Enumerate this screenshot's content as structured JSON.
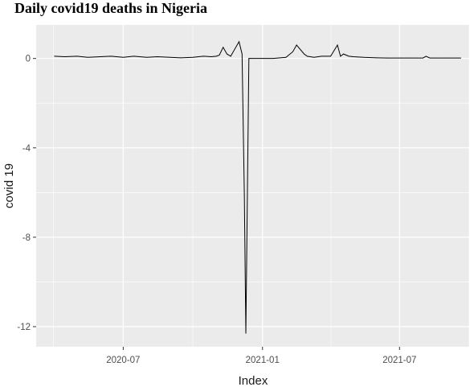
{
  "chart_data": {
    "type": "line",
    "title": "Daily covid19 deaths in Nigeria",
    "xlabel": "Index",
    "ylabel": "covid 19",
    "x_tick_labels": [
      "2020-07",
      "2021-01",
      "2021-07"
    ],
    "x_tick_dates": [
      "2020-07-01",
      "2021-01-01",
      "2021-07-01"
    ],
    "y_tick_labels": [
      "0",
      "-4",
      "-8",
      "-12"
    ],
    "y_ticks": [
      0,
      -4,
      -8,
      -12
    ],
    "xlim": [
      "2020-03-08",
      "2021-10-01"
    ],
    "ylim": [
      -12.9,
      1.5
    ],
    "grid": true,
    "background": "#ebebeb",
    "grid_color": "#ffffff",
    "line_color": "#000000",
    "series": [
      {
        "x": [
          "2020-04-01",
          "2020-04-15",
          "2020-05-01",
          "2020-05-15",
          "2020-06-01",
          "2020-06-15",
          "2020-07-01",
          "2020-07-15",
          "2020-08-01",
          "2020-08-15",
          "2020-09-01",
          "2020-09-15",
          "2020-10-01",
          "2020-10-15",
          "2020-10-25",
          "2020-11-01",
          "2020-11-05",
          "2020-11-10",
          "2020-11-15",
          "2020-11-20",
          "2020-11-25",
          "2020-12-01",
          "2020-12-05",
          "2020-12-08",
          "2020-12-10",
          "2020-12-12",
          "2020-12-14",
          "2020-12-15",
          "2020-12-16",
          "2020-12-18",
          "2020-12-20",
          "2021-01-01",
          "2021-01-15",
          "2021-02-01",
          "2021-02-10",
          "2021-02-15",
          "2021-02-20",
          "2021-02-25",
          "2021-03-01",
          "2021-03-10",
          "2021-03-20",
          "2021-04-01",
          "2021-04-10",
          "2021-04-14",
          "2021-04-18",
          "2021-04-25",
          "2021-05-01",
          "2021-05-15",
          "2021-06-01",
          "2021-06-15",
          "2021-07-01",
          "2021-07-15",
          "2021-08-01",
          "2021-08-05",
          "2021-08-10",
          "2021-08-15",
          "2021-09-01",
          "2021-09-15",
          "2021-09-20"
        ],
        "values": [
          0.1,
          0.08,
          0.1,
          0.05,
          0.08,
          0.1,
          0.05,
          0.1,
          0.05,
          0.08,
          0.05,
          0.03,
          0.05,
          0.1,
          0.08,
          0.1,
          0.15,
          0.5,
          0.2,
          0.1,
          0.4,
          0.75,
          0.2,
          -6.1,
          -12.3,
          -6.2,
          0.0,
          0.0,
          0.0,
          0.0,
          0.0,
          0.0,
          0.0,
          0.05,
          0.3,
          0.6,
          0.4,
          0.2,
          0.1,
          0.05,
          0.1,
          0.1,
          0.6,
          0.1,
          0.2,
          0.1,
          0.08,
          0.05,
          0.03,
          0.02,
          0.02,
          0.02,
          0.02,
          0.1,
          0.02,
          0.02,
          0.02,
          0.02,
          0.02
        ]
      }
    ]
  }
}
